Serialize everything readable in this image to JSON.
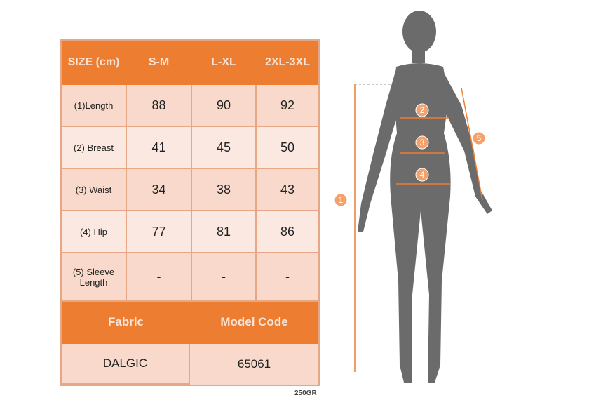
{
  "size_table": {
    "header": [
      "SIZE (cm)",
      "S-M",
      "L-XL",
      "2XL-3XL"
    ],
    "rows": [
      {
        "label": "(1)Length",
        "values": [
          "88",
          "90",
          "92"
        ]
      },
      {
        "label": "(2) Breast",
        "values": [
          "41",
          "45",
          "50"
        ]
      },
      {
        "label": "(3) Waist",
        "values": [
          "34",
          "38",
          "43"
        ]
      },
      {
        "label": "(4) Hip",
        "values": [
          "77",
          "81",
          "86"
        ]
      },
      {
        "label": "(5) Sleeve Length",
        "values": [
          "-",
          "-",
          "-"
        ]
      }
    ],
    "footer_headers": [
      "Fabric",
      "Model Code"
    ],
    "footer_values": [
      "DALGIC",
      "65061"
    ]
  },
  "weight": "250GR",
  "figure": {
    "markers": [
      "1",
      "2",
      "3",
      "4",
      "5"
    ],
    "accent": "#ed7d31",
    "silhouette": "#6b6b6b"
  }
}
